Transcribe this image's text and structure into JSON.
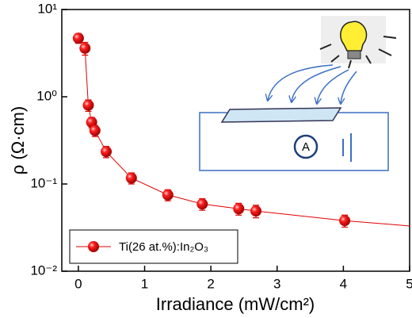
{
  "chart_data": {
    "type": "scatter",
    "x_label": "Irradiance (mW/cm²)",
    "y_label": "ρ (Ω·cm)",
    "log_y": true,
    "xlim": [
      -0.25,
      5
    ],
    "xticks": [
      0,
      1,
      2,
      3,
      4,
      5
    ],
    "ylim": [
      0.01,
      10
    ],
    "yticks": [
      {
        "value": 0.01,
        "label": "10⁻²"
      },
      {
        "value": 0.1,
        "label": "10⁻¹"
      },
      {
        "value": 1,
        "label": "10⁰"
      },
      {
        "value": 10,
        "label": "10¹"
      }
    ],
    "legend_position": "lower left",
    "series": [
      {
        "name": "Ti(26 at.%):In₂O₃",
        "color": "#e00000",
        "x": [
          0,
          0.1,
          0.15,
          0.2,
          0.25,
          0.42,
          0.8,
          1.35,
          1.87,
          2.42,
          2.68,
          4.02
        ],
        "values": [
          4.7,
          3.6,
          0.8,
          0.51,
          0.41,
          0.235,
          0.117,
          0.075,
          0.059,
          0.052,
          0.049,
          0.038
        ],
        "errors": [
          0.6,
          0.6,
          0.12,
          0.07,
          0.06,
          0.035,
          0.017,
          0.011,
          0.009,
          0.008,
          0.008,
          0.006
        ]
      }
    ],
    "fit": {
      "x": [
        0,
        0.1,
        0.15,
        0.2,
        0.25,
        0.42,
        0.8,
        1.35,
        1.87,
        2.42,
        2.68,
        4.02,
        5
      ],
      "values": [
        4.7,
        3.6,
        0.8,
        0.51,
        0.41,
        0.235,
        0.117,
        0.075,
        0.059,
        0.052,
        0.049,
        0.038,
        0.033
      ]
    },
    "inset": {
      "ammeter_label": "A"
    }
  }
}
